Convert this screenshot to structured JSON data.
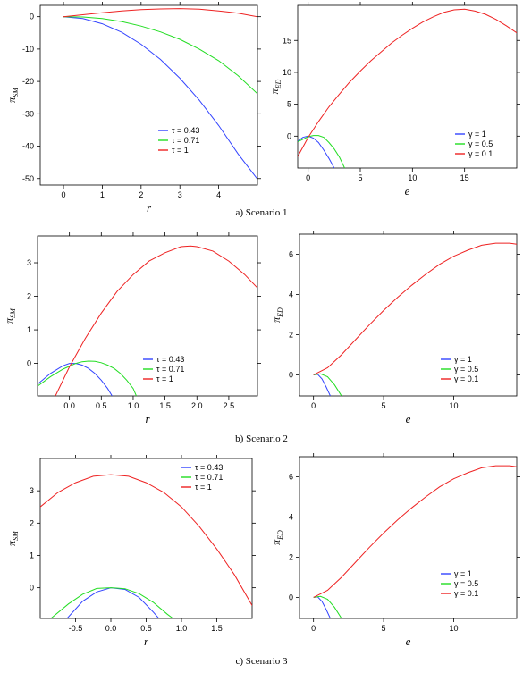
{
  "captions": [
    "a) Scenario 1",
    "b) Scenario 2",
    "c) Scenario 3"
  ],
  "chart_data": [
    {
      "type": "line",
      "panel": "scenario-1-left",
      "xlabel": "r",
      "ylabel": "π_SM",
      "xlim": [
        -0.6,
        5.0
      ],
      "ylim": [
        -52,
        3.5
      ],
      "xticks": [
        0,
        1,
        2,
        3,
        4
      ],
      "yticks": [
        0,
        -10,
        -20,
        -30,
        -40,
        -50
      ],
      "legend_position": "bottom-right",
      "series": [
        {
          "name": "τ = 0.43",
          "color": "#3344ff",
          "x": [
            0,
            0.5,
            1,
            1.5,
            2,
            2.5,
            3,
            3.5,
            4,
            4.5,
            5
          ],
          "y": [
            0,
            -0.6,
            -2.2,
            -4.8,
            -8.5,
            -13.2,
            -19.0,
            -25.8,
            -33.6,
            -42.4,
            -50.2
          ]
        },
        {
          "name": "τ = 0.71",
          "color": "#22dd22",
          "x": [
            0,
            0.5,
            1,
            1.5,
            2,
            2.5,
            3,
            3.5,
            4,
            4.5,
            5
          ],
          "y": [
            0,
            -0.1,
            -0.6,
            -1.5,
            -2.9,
            -4.7,
            -7.0,
            -10.0,
            -13.6,
            -18.2,
            -23.8
          ]
        },
        {
          "name": "τ = 1",
          "color": "#ee2222",
          "x": [
            0,
            0.5,
            1,
            1.5,
            2,
            2.5,
            3,
            3.5,
            4,
            4.5,
            5
          ],
          "y": [
            0,
            0.6,
            1.2,
            1.8,
            2.2,
            2.4,
            2.5,
            2.3,
            1.8,
            1.1,
            0
          ]
        }
      ]
    },
    {
      "type": "line",
      "panel": "scenario-1-right",
      "xlabel": "e",
      "ylabel": "π_ED",
      "xlim": [
        -1,
        20
      ],
      "ylim": [
        -5,
        20.5
      ],
      "xticks": [
        0,
        5,
        10,
        15
      ],
      "yticks": [
        0,
        5,
        10,
        15
      ],
      "legend_position": "bottom-right",
      "series": [
        {
          "name": "γ = 1",
          "color": "#3344ff",
          "x": [
            -1,
            -0.5,
            0,
            0.5,
            1,
            1.5,
            2,
            2.5
          ],
          "y": [
            -0.8,
            -0.2,
            0,
            -0.3,
            -1.0,
            -2.2,
            -3.5,
            -5
          ]
        },
        {
          "name": "γ = 0.5",
          "color": "#22dd22",
          "x": [
            -1,
            0,
            0.5,
            1,
            1.5,
            2,
            2.5,
            3,
            3.5
          ],
          "y": [
            -0.9,
            -0.1,
            0.1,
            0.1,
            -0.2,
            -1.0,
            -2.0,
            -3.3,
            -5
          ]
        },
        {
          "name": "γ = 0.1",
          "color": "#ee2222",
          "x": [
            -1,
            0,
            1,
            2,
            3,
            4,
            5,
            6,
            7,
            8,
            9,
            10,
            11,
            12,
            13,
            14,
            15,
            16,
            17,
            18,
            19,
            20
          ],
          "y": [
            -3.2,
            -0.2,
            2.3,
            4.6,
            6.6,
            8.5,
            10.2,
            11.8,
            13.2,
            14.6,
            15.8,
            16.9,
            17.9,
            18.7,
            19.4,
            19.8,
            19.9,
            19.6,
            19.1,
            18.3,
            17.3,
            16.2
          ]
        }
      ]
    },
    {
      "type": "line",
      "panel": "scenario-2-left",
      "xlabel": "r",
      "ylabel": "π_SM",
      "xlim": [
        -0.5,
        2.95
      ],
      "ylim": [
        -0.97,
        3.8
      ],
      "xticks": [
        0.0,
        0.5,
        1.0,
        1.5,
        2.0,
        2.5
      ],
      "yticks": [
        0,
        1,
        2,
        3
      ],
      "legend_position": "bottom-center",
      "series": [
        {
          "name": "τ = 0.43",
          "color": "#3344ff",
          "x": [
            -0.5,
            -0.3,
            -0.1,
            0.0,
            0.1,
            0.2,
            0.3,
            0.4,
            0.5,
            0.6,
            0.67
          ],
          "y": [
            -0.62,
            -0.3,
            -0.07,
            0,
            0.0,
            -0.05,
            -0.15,
            -0.3,
            -0.5,
            -0.75,
            -0.97
          ]
        },
        {
          "name": "τ = 0.71",
          "color": "#22dd22",
          "x": [
            -0.5,
            -0.3,
            -0.1,
            0.1,
            0.2,
            0.3,
            0.4,
            0.5,
            0.6,
            0.7,
            0.8,
            0.9,
            1.0,
            1.05
          ],
          "y": [
            -0.68,
            -0.4,
            -0.17,
            0.0,
            0.05,
            0.07,
            0.06,
            0.02,
            -0.05,
            -0.15,
            -0.3,
            -0.5,
            -0.75,
            -0.97
          ]
        },
        {
          "name": "τ = 1",
          "color": "#ee2222",
          "x": [
            -0.22,
            0.0,
            0.25,
            0.5,
            0.75,
            1.0,
            1.25,
            1.5,
            1.75,
            1.9,
            2.0,
            2.25,
            2.5,
            2.75,
            2.95
          ],
          "y": [
            -0.97,
            -0.1,
            0.75,
            1.5,
            2.15,
            2.65,
            3.05,
            3.3,
            3.48,
            3.5,
            3.48,
            3.35,
            3.05,
            2.65,
            2.25
          ]
        }
      ]
    },
    {
      "type": "line",
      "panel": "scenario-2-right",
      "xlabel": "e",
      "ylabel": "π_ED",
      "xlim": [
        -1,
        14.5
      ],
      "ylim": [
        -1.05,
        7.0
      ],
      "xticks": [
        0,
        5,
        10
      ],
      "yticks": [
        0,
        2,
        4,
        6
      ],
      "legend_position": "bottom-center",
      "series": [
        {
          "name": "γ = 1",
          "color": "#3344ff",
          "x": [
            0,
            0.3,
            0.6,
            0.9,
            1.2
          ],
          "y": [
            0,
            0.02,
            -0.2,
            -0.6,
            -1.05
          ]
        },
        {
          "name": "γ = 0.5",
          "color": "#22dd22",
          "x": [
            0,
            0.5,
            1.0,
            1.5,
            2.0
          ],
          "y": [
            0,
            0.05,
            -0.1,
            -0.5,
            -1.05
          ]
        },
        {
          "name": "γ = 0.1",
          "color": "#ee2222",
          "x": [
            0,
            1,
            2,
            3,
            4,
            5,
            6,
            7,
            8,
            9,
            10,
            11,
            12,
            13,
            14,
            14.5
          ],
          "y": [
            0,
            0.35,
            1.0,
            1.75,
            2.5,
            3.2,
            3.85,
            4.45,
            5.0,
            5.5,
            5.9,
            6.2,
            6.45,
            6.55,
            6.55,
            6.5
          ]
        }
      ]
    },
    {
      "type": "line",
      "panel": "scenario-3-left",
      "xlabel": "r",
      "ylabel": "π_SM",
      "xlim": [
        -1.0,
        2.0
      ],
      "ylim": [
        -0.95,
        4.0
      ],
      "xticks": [
        -0.5,
        0.0,
        0.5,
        1.0,
        1.5
      ],
      "yticks": [
        0,
        1,
        2,
        3
      ],
      "legend_position": "top-right",
      "series": [
        {
          "name": "τ = 0.43",
          "color": "#3344ff",
          "x": [
            -0.62,
            -0.4,
            -0.2,
            0.0,
            0.2,
            0.4,
            0.6,
            0.68
          ],
          "y": [
            -0.95,
            -0.42,
            -0.13,
            0.0,
            -0.05,
            -0.3,
            -0.75,
            -0.95
          ]
        },
        {
          "name": "τ = 0.71",
          "color": "#22dd22",
          "x": [
            -0.85,
            -0.6,
            -0.4,
            -0.2,
            0.0,
            0.2,
            0.4,
            0.6,
            0.8,
            0.88
          ],
          "y": [
            -0.95,
            -0.5,
            -0.2,
            -0.02,
            0.0,
            -0.03,
            -0.18,
            -0.45,
            -0.82,
            -0.95
          ]
        },
        {
          "name": "τ = 1",
          "color": "#ee2222",
          "x": [
            -1.0,
            -0.75,
            -0.5,
            -0.25,
            0.0,
            0.25,
            0.5,
            0.75,
            1.0,
            1.25,
            1.5,
            1.75,
            2.0
          ],
          "y": [
            2.5,
            2.95,
            3.25,
            3.45,
            3.5,
            3.45,
            3.25,
            2.95,
            2.5,
            1.9,
            1.2,
            0.4,
            -0.55
          ]
        }
      ]
    },
    {
      "type": "line",
      "panel": "scenario-3-right",
      "xlabel": "e",
      "ylabel": "π_ED",
      "xlim": [
        -1,
        14.5
      ],
      "ylim": [
        -1.05,
        7.0
      ],
      "xticks": [
        0,
        5,
        10
      ],
      "yticks": [
        0,
        2,
        4,
        6
      ],
      "legend_position": "bottom-center",
      "series": [
        {
          "name": "γ = 1",
          "color": "#3344ff",
          "x": [
            0,
            0.3,
            0.6,
            0.9,
            1.2
          ],
          "y": [
            0,
            0.02,
            -0.2,
            -0.6,
            -1.05
          ]
        },
        {
          "name": "γ = 0.5",
          "color": "#22dd22",
          "x": [
            0,
            0.5,
            1.0,
            1.5,
            2.0
          ],
          "y": [
            0,
            0.05,
            -0.1,
            -0.5,
            -1.05
          ]
        },
        {
          "name": "γ = 0.1",
          "color": "#ee2222",
          "x": [
            0,
            1,
            2,
            3,
            4,
            5,
            6,
            7,
            8,
            9,
            10,
            11,
            12,
            13,
            14,
            14.5
          ],
          "y": [
            0,
            0.35,
            1.0,
            1.75,
            2.5,
            3.2,
            3.85,
            4.45,
            5.0,
            5.5,
            5.9,
            6.2,
            6.45,
            6.55,
            6.55,
            6.5
          ]
        }
      ]
    }
  ]
}
